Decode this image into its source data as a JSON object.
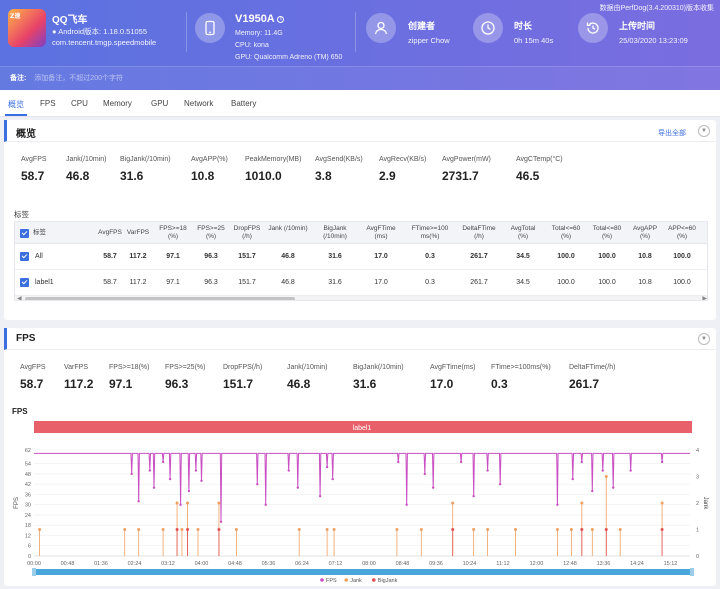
{
  "header": {
    "app": {
      "icon_text": "Z速",
      "name": "QQ飞车",
      "version": "Android版本: 1.18.0.51055",
      "package": "com.tencent.tmgp.speedmobile"
    },
    "device": {
      "name": "V1950A",
      "memory": "Memory: 11.4G",
      "cpu": "CPU: kona",
      "gpu": "GPU: Qualcomm Adreno (TM) 650"
    },
    "creator": {
      "label": "创建者",
      "value": "zipper Chow",
      "icon": "user-icon"
    },
    "duration": {
      "label": "时长",
      "value": "0h 15m 40s",
      "icon": "clock-icon"
    },
    "upload": {
      "label": "上传时间",
      "value": "25/03/2020 13:23:09",
      "icon": "history-icon"
    },
    "note": "数据由PerfDog(3.4.200310)版本收集",
    "remark_label": "备注:",
    "remark_placeholder": "添加备注，不超过200个字符"
  },
  "tabs": [
    {
      "label": "概览",
      "active": true
    },
    {
      "label": "FPS"
    },
    {
      "label": "CPU"
    },
    {
      "label": "Memory"
    },
    {
      "label": "GPU"
    },
    {
      "label": "Network"
    },
    {
      "label": "Battery"
    }
  ],
  "overview": {
    "title": "概览",
    "export_label": "导出全部",
    "stats": [
      {
        "label": "AvgFPS",
        "value": "58.7"
      },
      {
        "label": "Jank(/10min)",
        "value": "46.8"
      },
      {
        "label": "BigJank(/10min)",
        "value": "31.6"
      },
      {
        "label": "AvgAPP(%)",
        "value": "10.8"
      },
      {
        "label": "PeakMemory(MB)",
        "value": "1010.0"
      },
      {
        "label": "AvgSend(KB/s)",
        "value": "3.8"
      },
      {
        "label": "AvgRecv(KB/s)",
        "value": "2.9"
      },
      {
        "label": "AvgPower(mW)",
        "value": "2731.7"
      },
      {
        "label": "AvgCTemp(°C)",
        "value": "46.5"
      }
    ],
    "table": {
      "caption": "标签",
      "headers": [
        "标签",
        "AvgFPS",
        "VarFPS",
        "FPS>=18\n(%)",
        "FPS>=25\n(%)",
        "DropFPS\n(/h)",
        "Jank (/10min)",
        "BigJank\n(/10min)",
        "AvgFTime\n(ms)",
        "FTime>=100\nms(%)",
        "DeltaFTime\n(/h)",
        "AvgTotal\n(%)",
        "Total<=60\n(%)",
        "Total<=80\n(%)",
        "AvgAPP\n(%)",
        "APP<=60\n(%)"
      ],
      "rows": [
        {
          "label": "All",
          "cells": [
            "58.7",
            "117.2",
            "97.1",
            "96.3",
            "151.7",
            "46.8",
            "31.6",
            "17.0",
            "0.3",
            "261.7",
            "34.5",
            "100.0",
            "100.0",
            "10.8",
            "100.0"
          ]
        },
        {
          "label": "label1",
          "cells": [
            "58.7",
            "117.2",
            "97.1",
            "96.3",
            "151.7",
            "46.8",
            "31.6",
            "17.0",
            "0.3",
            "261.7",
            "34.5",
            "100.0",
            "100.0",
            "10.8",
            "100.0"
          ]
        }
      ]
    }
  },
  "fps_section": {
    "title": "FPS",
    "stats": [
      {
        "label": "AvgFPS",
        "value": "58.7"
      },
      {
        "label": "VarFPS",
        "value": "117.2"
      },
      {
        "label": "FPS>=18(%)",
        "value": "97.1"
      },
      {
        "label": "FPS>=25(%)",
        "value": "96.3"
      },
      {
        "label": "DropFPS(/h)",
        "value": "151.7"
      },
      {
        "label": "Jank(/10min)",
        "value": "46.8"
      },
      {
        "label": "BigJank(/10min)",
        "value": "31.6"
      },
      {
        "label": "AvgFTime(ms)",
        "value": "17.0"
      },
      {
        "label": "FTime>=100ms(%)",
        "value": "0.3"
      },
      {
        "label": "DeltaFTime(/h)",
        "value": "261.7"
      }
    ]
  },
  "chart_data": {
    "type": "line",
    "title": "FPS",
    "label_bar": "label1",
    "ylabel_left": "FPS",
    "ylabel_right": "Jank",
    "ylim_left": [
      0,
      62
    ],
    "ylim_right": [
      0,
      4
    ],
    "yticks_left": [
      0,
      6,
      12,
      18,
      24,
      30,
      36,
      42,
      48,
      54,
      62
    ],
    "yticks_right": [
      0,
      1,
      2,
      3,
      4
    ],
    "xticks": [
      "00:00",
      "00:48",
      "01:36",
      "02:24",
      "03:12",
      "04:00",
      "04:48",
      "05:36",
      "06:24",
      "07:12",
      "08:00",
      "08:48",
      "09:36",
      "10:24",
      "11:12",
      "12:00",
      "12:48",
      "13:36",
      "14:24",
      "15:12"
    ],
    "x_max_seconds": 940,
    "fps_baseline": 60,
    "fps_dips": [
      [
        140,
        48
      ],
      [
        150,
        32
      ],
      [
        166,
        50
      ],
      [
        172,
        40
      ],
      [
        185,
        55
      ],
      [
        195,
        45
      ],
      [
        210,
        30
      ],
      [
        222,
        38
      ],
      [
        232,
        50
      ],
      [
        240,
        44
      ],
      [
        268,
        20
      ],
      [
        320,
        42
      ],
      [
        332,
        30
      ],
      [
        365,
        50
      ],
      [
        378,
        40
      ],
      [
        410,
        35
      ],
      [
        420,
        52
      ],
      [
        428,
        45
      ],
      [
        522,
        55
      ],
      [
        534,
        30
      ],
      [
        560,
        48
      ],
      [
        572,
        40
      ],
      [
        612,
        55
      ],
      [
        630,
        35
      ],
      [
        650,
        50
      ],
      [
        668,
        42
      ],
      [
        750,
        30
      ],
      [
        772,
        45
      ],
      [
        785,
        55
      ],
      [
        800,
        38
      ],
      [
        815,
        50
      ],
      [
        830,
        40
      ],
      [
        855,
        50
      ],
      [
        900,
        55
      ]
    ],
    "jank": [
      [
        8,
        1
      ],
      [
        130,
        1
      ],
      [
        150,
        1
      ],
      [
        185,
        1
      ],
      [
        205,
        2
      ],
      [
        212,
        1
      ],
      [
        220,
        2
      ],
      [
        235,
        1
      ],
      [
        265,
        2
      ],
      [
        290,
        1
      ],
      [
        380,
        1
      ],
      [
        420,
        1
      ],
      [
        430,
        1
      ],
      [
        520,
        1
      ],
      [
        555,
        1
      ],
      [
        600,
        2
      ],
      [
        630,
        1
      ],
      [
        650,
        1
      ],
      [
        690,
        1
      ],
      [
        750,
        1
      ],
      [
        770,
        1
      ],
      [
        785,
        2
      ],
      [
        800,
        1
      ],
      [
        820,
        3
      ],
      [
        840,
        1
      ],
      [
        900,
        2
      ]
    ],
    "bigjank": [
      [
        205,
        1
      ],
      [
        220,
        1
      ],
      [
        265,
        1
      ],
      [
        600,
        1
      ],
      [
        785,
        1
      ],
      [
        820,
        1
      ],
      [
        900,
        1
      ]
    ],
    "legend": [
      "FPS",
      "Jank",
      "BigJank"
    ],
    "colors": {
      "fps": "#c94fc2",
      "jank": "#f0a060",
      "bigjank": "#e05050",
      "label_bar": "#e8606a"
    }
  }
}
